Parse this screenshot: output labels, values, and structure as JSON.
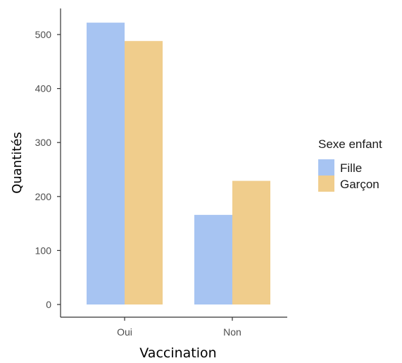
{
  "chart_data": {
    "type": "bar",
    "categories": [
      "Oui",
      "Non"
    ],
    "series": [
      {
        "name": "Fille",
        "values": [
          522,
          166
        ],
        "color": "#a7c4f2"
      },
      {
        "name": "Garçon",
        "values": [
          488,
          229
        ],
        "color": "#f0cd8c"
      }
    ],
    "xlabel": "Vaccination",
    "ylabel": "Quantités",
    "ylim": [
      0,
      550
    ],
    "yticks": [
      0,
      100,
      200,
      300,
      400,
      500
    ],
    "legend": {
      "title": "Sexe enfant",
      "position": "right"
    },
    "grid": false
  }
}
